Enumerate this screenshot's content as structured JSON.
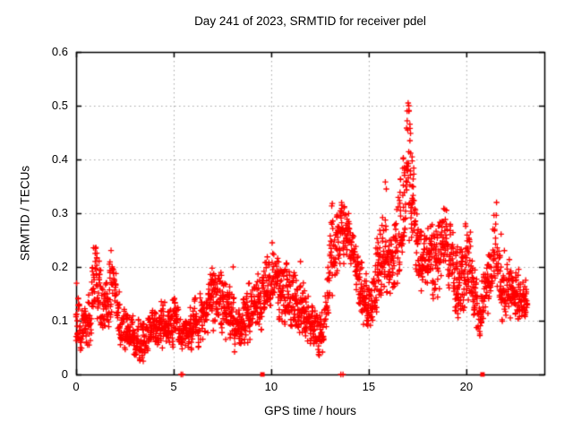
{
  "chart_data": {
    "type": "scatter",
    "title": "Day 241 of 2023, SRMTID for receiver pdel",
    "xlabel": "GPS time / hours",
    "ylabel": "SRMTID / TECUs",
    "xlim": [
      0,
      24
    ],
    "ylim": [
      0,
      0.6
    ],
    "grid": true,
    "legend": "none",
    "marker": "plus",
    "xticks": {
      "values": [
        0,
        5,
        10,
        15,
        20
      ],
      "labels": [
        "0",
        "5",
        "10",
        "15",
        "20"
      ]
    },
    "yticks": {
      "values": [
        0,
        0.1,
        0.2,
        0.3,
        0.4,
        0.5,
        0.6
      ],
      "labels": [
        "0",
        "0.1",
        "0.2",
        "0.3",
        "0.4",
        "0.5",
        "0.6"
      ]
    },
    "colors": {
      "marker": "#ff0000",
      "grid": "#a8a8a8",
      "axis": "#000000",
      "background": "#ffffff",
      "text": "#000000"
    },
    "series_name": "SRMTID for receiver pdel",
    "envelope_hour_lo_hi": [
      [
        0.0,
        0.04,
        0.17
      ],
      [
        0.25,
        0.035,
        0.13
      ],
      [
        0.5,
        0.035,
        0.12
      ],
      [
        0.75,
        0.05,
        0.15
      ],
      [
        0.9,
        0.09,
        0.24
      ],
      [
        1.05,
        0.1,
        0.26
      ],
      [
        1.2,
        0.09,
        0.22
      ],
      [
        1.4,
        0.05,
        0.16
      ],
      [
        1.6,
        0.06,
        0.17
      ],
      [
        1.8,
        0.09,
        0.23
      ],
      [
        2.0,
        0.07,
        0.19
      ],
      [
        2.2,
        0.05,
        0.15
      ],
      [
        2.45,
        0.04,
        0.13
      ],
      [
        2.7,
        0.03,
        0.11
      ],
      [
        3.0,
        0.02,
        0.1
      ],
      [
        3.3,
        0.02,
        0.09
      ],
      [
        3.6,
        0.03,
        0.1
      ],
      [
        3.9,
        0.04,
        0.13
      ],
      [
        4.2,
        0.04,
        0.12
      ],
      [
        4.5,
        0.04,
        0.13
      ],
      [
        4.8,
        0.04,
        0.12
      ],
      [
        5.1,
        0.05,
        0.15
      ],
      [
        5.4,
        0.04,
        0.11
      ],
      [
        5.7,
        0.04,
        0.12
      ],
      [
        6.0,
        0.05,
        0.13
      ],
      [
        6.3,
        0.05,
        0.14
      ],
      [
        6.6,
        0.06,
        0.15
      ],
      [
        6.9,
        0.08,
        0.19
      ],
      [
        7.2,
        0.08,
        0.2
      ],
      [
        7.5,
        0.07,
        0.18
      ],
      [
        7.8,
        0.06,
        0.16
      ],
      [
        8.1,
        0.05,
        0.14
      ],
      [
        8.4,
        0.03,
        0.12
      ],
      [
        8.7,
        0.05,
        0.15
      ],
      [
        9.0,
        0.06,
        0.17
      ],
      [
        9.3,
        0.08,
        0.18
      ],
      [
        9.6,
        0.09,
        0.19
      ],
      [
        9.9,
        0.1,
        0.22
      ],
      [
        10.1,
        0.1,
        0.23
      ],
      [
        10.35,
        0.09,
        0.21
      ],
      [
        10.6,
        0.08,
        0.2
      ],
      [
        10.85,
        0.08,
        0.21
      ],
      [
        11.1,
        0.07,
        0.18
      ],
      [
        11.35,
        0.07,
        0.18
      ],
      [
        11.6,
        0.06,
        0.16
      ],
      [
        11.9,
        0.05,
        0.14
      ],
      [
        12.2,
        0.04,
        0.12
      ],
      [
        12.5,
        0.03,
        0.11
      ],
      [
        12.8,
        0.06,
        0.15
      ],
      [
        13.0,
        0.1,
        0.25
      ],
      [
        13.1,
        0.14,
        0.31
      ],
      [
        13.3,
        0.16,
        0.3
      ],
      [
        13.45,
        0.17,
        0.31
      ],
      [
        13.6,
        0.19,
        0.31
      ],
      [
        13.75,
        0.21,
        0.32
      ],
      [
        13.9,
        0.19,
        0.3
      ],
      [
        14.1,
        0.18,
        0.28
      ],
      [
        14.3,
        0.15,
        0.26
      ],
      [
        14.5,
        0.12,
        0.22
      ],
      [
        14.7,
        0.09,
        0.19
      ],
      [
        14.9,
        0.08,
        0.17
      ],
      [
        15.1,
        0.08,
        0.17
      ],
      [
        15.35,
        0.1,
        0.22
      ],
      [
        15.6,
        0.14,
        0.28
      ],
      [
        15.8,
        0.16,
        0.31
      ],
      [
        16.0,
        0.13,
        0.26
      ],
      [
        16.2,
        0.13,
        0.28
      ],
      [
        16.45,
        0.15,
        0.31
      ],
      [
        16.7,
        0.18,
        0.37
      ],
      [
        16.9,
        0.22,
        0.45
      ],
      [
        17.0,
        0.25,
        0.5
      ],
      [
        17.1,
        0.24,
        0.48
      ],
      [
        17.25,
        0.2,
        0.41
      ],
      [
        17.4,
        0.18,
        0.34
      ],
      [
        17.6,
        0.15,
        0.28
      ],
      [
        17.8,
        0.13,
        0.25
      ],
      [
        18.0,
        0.14,
        0.26
      ],
      [
        18.2,
        0.14,
        0.27
      ],
      [
        18.45,
        0.13,
        0.26
      ],
      [
        18.7,
        0.16,
        0.3
      ],
      [
        18.9,
        0.17,
        0.31
      ],
      [
        19.1,
        0.13,
        0.28
      ],
      [
        19.3,
        0.11,
        0.26
      ],
      [
        19.55,
        0.1,
        0.23
      ],
      [
        19.8,
        0.1,
        0.24
      ],
      [
        20.0,
        0.11,
        0.28
      ],
      [
        20.2,
        0.11,
        0.27
      ],
      [
        20.4,
        0.09,
        0.22
      ],
      [
        20.6,
        0.07,
        0.16
      ],
      [
        20.8,
        0.07,
        0.17
      ],
      [
        21.0,
        0.09,
        0.21
      ],
      [
        21.2,
        0.12,
        0.25
      ],
      [
        21.45,
        0.15,
        0.31
      ],
      [
        21.6,
        0.14,
        0.3
      ],
      [
        21.8,
        0.11,
        0.26
      ],
      [
        22.0,
        0.08,
        0.21
      ],
      [
        22.2,
        0.09,
        0.2
      ],
      [
        22.45,
        0.1,
        0.19
      ],
      [
        22.7,
        0.1,
        0.19
      ],
      [
        22.9,
        0.09,
        0.17
      ],
      [
        23.13,
        0.1,
        0.16
      ]
    ],
    "outlier_points": [
      [
        17.02,
        0.505
      ],
      [
        17.06,
        0.49
      ],
      [
        16.97,
        0.472
      ],
      [
        17.0,
        0.455
      ],
      [
        15.85,
        0.358
      ],
      [
        15.9,
        0.345
      ],
      [
        10.05,
        0.245
      ],
      [
        10.3,
        0.21
      ],
      [
        11.5,
        0.21
      ],
      [
        8.05,
        0.2
      ],
      [
        13.62,
        0.315
      ],
      [
        21.55,
        0.32
      ]
    ],
    "zero_value_markers": [
      {
        "x": 5.38,
        "style": "plus"
      },
      {
        "x": 5.46,
        "style": "plus"
      },
      {
        "x": 9.55,
        "style": "square"
      },
      {
        "x": 13.57,
        "style": "plus"
      },
      {
        "x": 13.68,
        "style": "plus"
      },
      {
        "x": 20.83,
        "style": "square"
      }
    ],
    "synthesis": {
      "seed": 241,
      "x_start": 0.0,
      "x_end": 23.13,
      "step_hours": 0.028,
      "points_min": 2,
      "points_max": 4,
      "top_spike_prob": 0.18,
      "value_clamp_max": 0.51
    }
  }
}
